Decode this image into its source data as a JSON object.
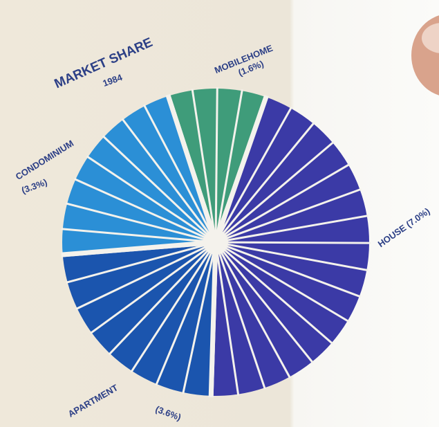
{
  "chart_data": {
    "type": "pie",
    "title": "MARKET SHARE",
    "subtitle": "1984",
    "categories": [
      "MOBILEHOME",
      "HOUSE",
      "APARTMENT",
      "CONDOMINIUM"
    ],
    "values": [
      1.6,
      7.0,
      3.6,
      3.3
    ],
    "value_labels": [
      "(1.6%)",
      "(7.0%)",
      "(3.6%)",
      "(3.3%)"
    ],
    "colors": [
      "#3f9c7a",
      "#3b3aa6",
      "#1b55ae",
      "#2b8fd6"
    ]
  }
}
